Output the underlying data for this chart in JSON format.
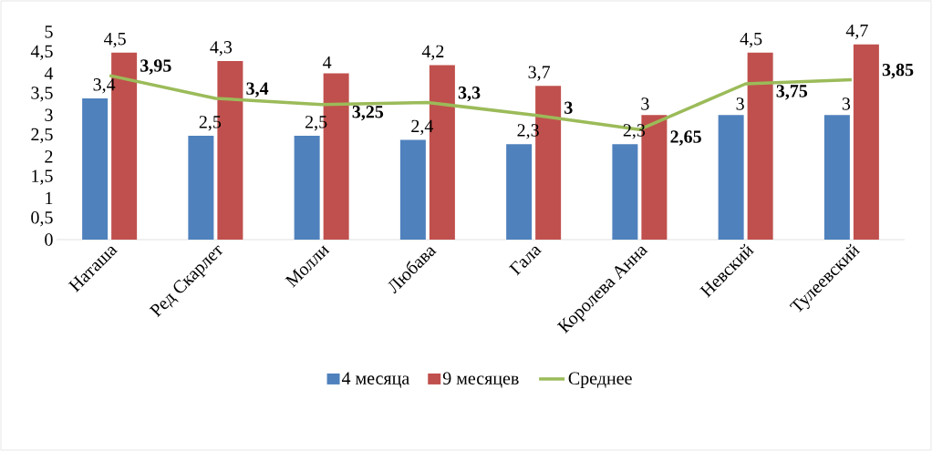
{
  "chart_data": {
    "type": "bar",
    "categories": [
      "Наташа",
      "Ред Скарлет",
      "Молли",
      "Любава",
      "Гала",
      "Королева Анна",
      "Невский",
      "Тулеевский"
    ],
    "ylim": [
      0,
      5
    ],
    "yticks": [
      0,
      {
        "value": 0.5,
        "label": "0,5"
      },
      1,
      {
        "value": 1.5,
        "label": "1,5"
      },
      2,
      {
        "value": 2.5,
        "label": "2,5"
      },
      3,
      {
        "value": 3.5,
        "label": "3,5"
      },
      4,
      {
        "value": 4.5,
        "label": "4,5"
      },
      5
    ],
    "legend": "bottom",
    "series": [
      {
        "name": "4 месяца",
        "color": "#4f81bd",
        "values": [
          3.4,
          2.5,
          2.5,
          2.4,
          2.3,
          2.3,
          3,
          3
        ],
        "value_labels": [
          "3,4",
          "2,5",
          "2,5",
          "2,4",
          "2,3",
          "2,3",
          "3",
          "3"
        ]
      },
      {
        "name": "9 месяцев",
        "color": "#c0504d",
        "values": [
          4.5,
          4.3,
          4,
          4.2,
          3.7,
          3,
          4.5,
          4.7
        ],
        "value_labels": [
          "4,5",
          "4,3",
          "4",
          "4,2",
          "3,7",
          "3",
          "4,5",
          "4,7"
        ]
      },
      {
        "name": "Среднее",
        "type": "line",
        "color": "#9bbb59",
        "values": [
          3.95,
          3.4,
          3.25,
          3.3,
          3,
          2.65,
          3.75,
          3.85
        ],
        "value_labels": [
          "3,95",
          "3,4",
          "3,25",
          "3,3",
          "3",
          "2,65",
          "3,75",
          "3,85"
        ]
      }
    ]
  }
}
